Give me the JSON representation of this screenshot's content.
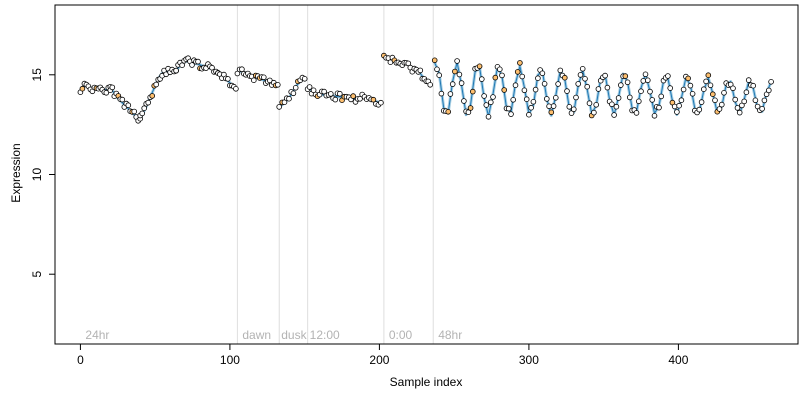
{
  "chart_data": {
    "type": "scatter",
    "xlabel": "Sample index",
    "ylabel": "Expression",
    "xlim": [
      -17,
      480
    ],
    "ylim": [
      1.5,
      18.5
    ],
    "x_ticks": [
      0,
      100,
      200,
      300,
      400
    ],
    "y_ticks": [
      5,
      10,
      15
    ],
    "grid": false,
    "legend": "none",
    "colors": {
      "points_stroke": "#000000",
      "points_fill_default": "#ffffff",
      "points_fill_highlight": "#fdbf6f",
      "line_blue": "#1f78b4",
      "line_light_blue": "#a6cee3",
      "vline": "#dedede",
      "annotation_text": "#b3b3b3"
    },
    "phase_lines": [
      105,
      133,
      152,
      203,
      236
    ],
    "phase_labels": [
      {
        "x": 2,
        "text": "24hr"
      },
      {
        "x": 107,
        "text": "dawn"
      },
      {
        "x": 133,
        "text": "dusk"
      },
      {
        "x": 152,
        "text": "12:00"
      },
      {
        "x": 205,
        "text": "0:00"
      },
      {
        "x": 238,
        "text": "48hr"
      }
    ],
    "segments": [
      {
        "x": [
          0,
          4,
          8,
          12,
          16,
          20
        ],
        "y": [
          14.3,
          14.5,
          14.3,
          14.4,
          14.2,
          14.4
        ]
      },
      {
        "x": [
          20,
          24,
          28,
          32,
          36,
          40
        ],
        "y": [
          14.4,
          13.9,
          13.6,
          13.3,
          13.0,
          12.8
        ]
      },
      {
        "x": [
          40,
          44,
          48,
          52,
          56,
          60,
          64
        ],
        "y": [
          12.8,
          13.4,
          14.1,
          14.8,
          15.2,
          15.1,
          15.2
        ]
      },
      {
        "x": [
          64,
          68,
          72,
          76,
          80,
          84,
          88,
          92
        ],
        "y": [
          15.2,
          15.6,
          15.7,
          15.6,
          15.5,
          15.4,
          15.3,
          15.1
        ]
      },
      {
        "x": [
          92,
          96,
          100,
          104
        ],
        "y": [
          15.1,
          14.9,
          14.6,
          14.3
        ]
      },
      {
        "x": [
          105,
          108,
          112,
          116,
          120,
          124,
          128,
          132
        ],
        "y": [
          15.1,
          15.2,
          15.0,
          14.9,
          14.8,
          14.7,
          14.6,
          14.5
        ]
      },
      {
        "x": [
          133,
          135,
          138,
          141,
          144,
          147,
          150
        ],
        "y": [
          13.4,
          13.5,
          13.7,
          14.0,
          14.4,
          14.7,
          14.8
        ]
      },
      {
        "x": [
          152,
          156,
          160,
          166,
          172,
          178,
          184,
          190,
          196,
          201
        ],
        "y": [
          14.4,
          14.1,
          14.0,
          14.0,
          13.9,
          13.9,
          13.8,
          13.9,
          13.7,
          13.6
        ]
      },
      {
        "x": [
          203,
          206,
          210,
          214,
          218,
          222,
          226,
          230,
          234
        ],
        "y": [
          15.9,
          15.8,
          15.7,
          15.5,
          15.6,
          15.3,
          15.2,
          14.8,
          14.5
        ]
      }
    ],
    "wave": {
      "x_start": 237,
      "x_end": 462,
      "step": 3,
      "period": 14,
      "center": 14.3,
      "amp_start": 1.4,
      "amp_end": 0.8,
      "trend": -0.002
    },
    "noise_seed": 11
  }
}
